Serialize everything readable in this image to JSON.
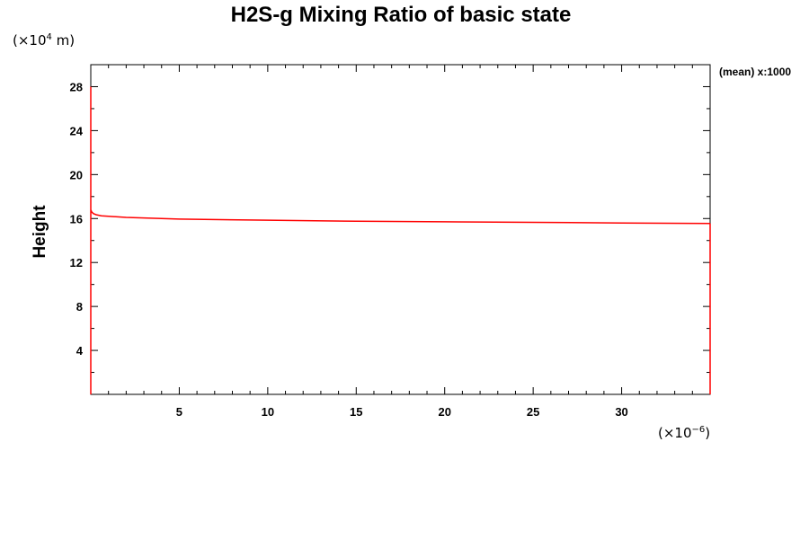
{
  "chart_data": {
    "type": "line",
    "title": "H2S-g Mixing Ratio of basic state",
    "xlabel": "",
    "ylabel": "Height",
    "y_unit": {
      "prefix": "(×10",
      "exp": "4",
      "suffix": " m)"
    },
    "x_unit": {
      "prefix": "(×10",
      "exp": "−6",
      "suffix": ")"
    },
    "annotation": "(mean) x:1000",
    "xlim": [
      0,
      35
    ],
    "ylim": [
      0,
      30
    ],
    "x_ticks": [
      5,
      10,
      15,
      20,
      25,
      30
    ],
    "y_ticks": [
      4,
      8,
      12,
      16,
      20,
      24,
      28
    ],
    "grid": false,
    "line_color": "#ff0000",
    "series": [
      {
        "x": [
          0,
          0,
          0,
          0.05,
          0.15,
          0.3,
          0.6,
          1,
          2,
          5,
          10,
          15,
          20,
          25,
          30,
          35
        ],
        "y": [
          0,
          28,
          16.8,
          16.6,
          16.45,
          16.35,
          16.25,
          16.2,
          16.1,
          15.95,
          15.85,
          15.75,
          15.7,
          15.65,
          15.6,
          15.55
        ]
      }
    ]
  }
}
